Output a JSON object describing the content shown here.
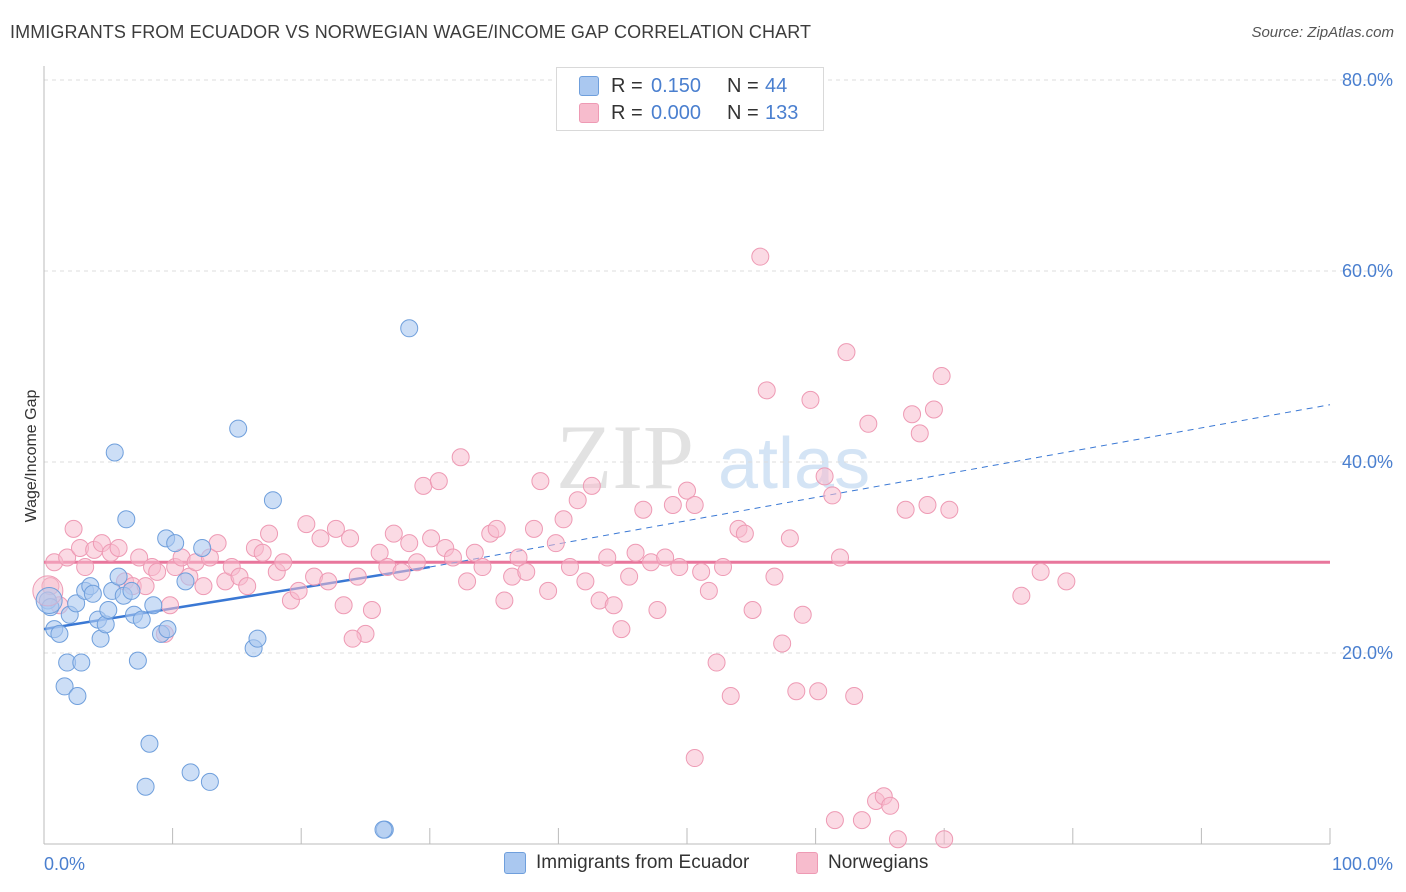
{
  "title": "IMMIGRANTS FROM ECUADOR VS NORWEGIAN WAGE/INCOME GAP CORRELATION CHART",
  "source": "Source: ZipAtlas.com",
  "watermark": {
    "zip": "ZIP",
    "atlas": "atlas"
  },
  "colors": {
    "blue_fill": "#aac8f0",
    "blue_stroke": "#6f9fdc",
    "blue_line": "#3a78d4",
    "pink_fill": "#f7bccd",
    "pink_stroke": "#ee9ab4",
    "pink_line": "#e8769c",
    "accent_text": "#4a7fcf",
    "grid": "#dddddd"
  },
  "legend": {
    "series1": {
      "r_label": "R =",
      "r_value": "0.150",
      "n_label": "N =",
      "n_value": "44"
    },
    "series2": {
      "r_label": "R =",
      "r_value": "0.000",
      "n_label": "N =",
      "n_value": "133"
    }
  },
  "chart_data": {
    "type": "scatter",
    "title": "IMMIGRANTS FROM ECUADOR VS NORWEGIAN WAGE/INCOME GAP CORRELATION CHART",
    "xlabel": "",
    "ylabel": "Wage/Income Gap",
    "xlim": [
      0,
      100
    ],
    "ylim": [
      0,
      80
    ],
    "x_tick_labels": [
      "0.0%",
      "100.0%"
    ],
    "y_ticks": [
      20,
      40,
      60,
      80
    ],
    "y_tick_labels": [
      "20.0%",
      "40.0%",
      "60.0%",
      "80.0%"
    ],
    "grid": true,
    "legend_position": "top-center and bottom",
    "series": [
      {
        "name": "Immigrants from Ecuador",
        "color": "blue",
        "R": 0.15,
        "N": 44,
        "trend": {
          "x0": 0,
          "y0": 22.5,
          "x1": 30,
          "y1": 29.0,
          "dashed_to_x": 100,
          "dashed_to_y": 46
        },
        "points": [
          [
            0.3,
            25.5
          ],
          [
            0.5,
            24.8
          ],
          [
            0.8,
            22.5
          ],
          [
            1.2,
            22.0
          ],
          [
            1.6,
            16.5
          ],
          [
            1.8,
            19.0
          ],
          [
            2.0,
            24.0
          ],
          [
            2.5,
            25.2
          ],
          [
            2.6,
            15.5
          ],
          [
            2.9,
            19.0
          ],
          [
            3.2,
            26.5
          ],
          [
            3.6,
            27.0
          ],
          [
            3.8,
            26.2
          ],
          [
            4.2,
            23.5
          ],
          [
            4.4,
            21.5
          ],
          [
            4.8,
            23.0
          ],
          [
            5.0,
            24.5
          ],
          [
            5.3,
            26.5
          ],
          [
            5.5,
            41.0
          ],
          [
            5.8,
            28.0
          ],
          [
            6.2,
            26.0
          ],
          [
            6.4,
            34.0
          ],
          [
            6.8,
            26.5
          ],
          [
            7.0,
            24.0
          ],
          [
            7.3,
            19.2
          ],
          [
            7.6,
            23.5
          ],
          [
            7.9,
            6.0
          ],
          [
            8.2,
            10.5
          ],
          [
            8.5,
            25.0
          ],
          [
            9.1,
            22.0
          ],
          [
            9.5,
            32.0
          ],
          [
            9.6,
            22.5
          ],
          [
            10.2,
            31.5
          ],
          [
            11.0,
            27.5
          ],
          [
            11.4,
            7.5
          ],
          [
            12.3,
            31.0
          ],
          [
            12.9,
            6.5
          ],
          [
            15.1,
            43.5
          ],
          [
            16.3,
            20.5
          ],
          [
            16.6,
            21.5
          ],
          [
            17.8,
            36.0
          ],
          [
            26.5,
            1.5
          ],
          [
            28.4,
            54.0
          ],
          [
            26.4,
            1.5
          ]
        ]
      },
      {
        "name": "Norwegians",
        "color": "pink",
        "R": 0.0,
        "N": 133,
        "trend": {
          "x0": 0,
          "y0": 29.5,
          "x1": 100,
          "y1": 29.5
        },
        "points": [
          [
            0.5,
            27.0
          ],
          [
            0.8,
            29.5
          ],
          [
            1.2,
            25.0
          ],
          [
            1.8,
            30.0
          ],
          [
            2.3,
            33.0
          ],
          [
            2.8,
            31.0
          ],
          [
            3.2,
            29.0
          ],
          [
            3.9,
            30.8
          ],
          [
            4.5,
            31.5
          ],
          [
            5.2,
            30.5
          ],
          [
            5.8,
            31.0
          ],
          [
            6.3,
            27.5
          ],
          [
            6.9,
            27.0
          ],
          [
            7.4,
            30.0
          ],
          [
            7.9,
            27.0
          ],
          [
            8.4,
            29.0
          ],
          [
            8.8,
            28.5
          ],
          [
            9.4,
            22.0
          ],
          [
            9.8,
            25.0
          ],
          [
            10.2,
            29.0
          ],
          [
            10.7,
            30.0
          ],
          [
            11.3,
            28.0
          ],
          [
            11.8,
            29.5
          ],
          [
            12.4,
            27.0
          ],
          [
            12.9,
            30.0
          ],
          [
            13.5,
            31.5
          ],
          [
            14.1,
            27.5
          ],
          [
            14.6,
            29.0
          ],
          [
            15.2,
            28.0
          ],
          [
            15.8,
            27.0
          ],
          [
            16.4,
            31.0
          ],
          [
            17.0,
            30.5
          ],
          [
            17.5,
            32.5
          ],
          [
            18.1,
            28.5
          ],
          [
            18.6,
            29.5
          ],
          [
            19.2,
            25.5
          ],
          [
            19.8,
            26.5
          ],
          [
            20.4,
            33.5
          ],
          [
            21.0,
            28.0
          ],
          [
            21.5,
            32.0
          ],
          [
            22.1,
            27.5
          ],
          [
            22.7,
            33.0
          ],
          [
            23.3,
            25.0
          ],
          [
            23.8,
            32.0
          ],
          [
            24.4,
            28.0
          ],
          [
            25.0,
            22.0
          ],
          [
            25.5,
            24.5
          ],
          [
            26.1,
            30.5
          ],
          [
            26.7,
            29.0
          ],
          [
            27.2,
            32.5
          ],
          [
            27.8,
            28.5
          ],
          [
            28.4,
            31.5
          ],
          [
            29.0,
            29.5
          ],
          [
            29.5,
            37.5
          ],
          [
            30.1,
            32.0
          ],
          [
            30.7,
            38.0
          ],
          [
            31.2,
            31.0
          ],
          [
            31.8,
            30.0
          ],
          [
            32.4,
            40.5
          ],
          [
            32.9,
            27.5
          ],
          [
            33.5,
            30.5
          ],
          [
            34.1,
            29.0
          ],
          [
            34.7,
            32.5
          ],
          [
            35.2,
            33.0
          ],
          [
            35.8,
            25.5
          ],
          [
            36.4,
            28.0
          ],
          [
            36.9,
            30.0
          ],
          [
            37.5,
            28.5
          ],
          [
            38.1,
            33.0
          ],
          [
            38.6,
            38.0
          ],
          [
            39.2,
            26.5
          ],
          [
            39.8,
            31.5
          ],
          [
            40.4,
            34.0
          ],
          [
            40.9,
            29.0
          ],
          [
            41.5,
            36.0
          ],
          [
            42.1,
            27.5
          ],
          [
            42.6,
            37.5
          ],
          [
            43.2,
            25.5
          ],
          [
            43.8,
            30.0
          ],
          [
            44.3,
            25.0
          ],
          [
            44.9,
            22.5
          ],
          [
            45.5,
            28.0
          ],
          [
            46.0,
            30.5
          ],
          [
            46.6,
            35.0
          ],
          [
            47.2,
            29.5
          ],
          [
            47.7,
            24.5
          ],
          [
            48.3,
            30.0
          ],
          [
            48.9,
            35.5
          ],
          [
            49.4,
            29.0
          ],
          [
            50.0,
            37.0
          ],
          [
            50.6,
            35.5
          ],
          [
            51.1,
            28.5
          ],
          [
            51.7,
            26.5
          ],
          [
            52.3,
            19.0
          ],
          [
            52.8,
            29.0
          ],
          [
            53.4,
            15.5
          ],
          [
            54.0,
            33.0
          ],
          [
            54.5,
            32.5
          ],
          [
            55.1,
            24.5
          ],
          [
            55.7,
            61.5
          ],
          [
            56.2,
            47.5
          ],
          [
            56.8,
            28.0
          ],
          [
            57.4,
            21.0
          ],
          [
            58.0,
            32.0
          ],
          [
            58.5,
            16.0
          ],
          [
            59.0,
            24.0
          ],
          [
            59.6,
            46.5
          ],
          [
            60.2,
            16.0
          ],
          [
            60.7,
            38.5
          ],
          [
            61.3,
            36.5
          ],
          [
            61.9,
            30.0
          ],
          [
            62.4,
            51.5
          ],
          [
            63.0,
            15.5
          ],
          [
            63.6,
            2.5
          ],
          [
            64.1,
            44.0
          ],
          [
            64.7,
            4.5
          ],
          [
            65.3,
            5.0
          ],
          [
            65.8,
            4.0
          ],
          [
            66.4,
            0.5
          ],
          [
            67.0,
            35.0
          ],
          [
            67.5,
            45.0
          ],
          [
            68.1,
            43.0
          ],
          [
            68.7,
            35.5
          ],
          [
            69.2,
            45.5
          ],
          [
            69.8,
            49.0
          ],
          [
            70.4,
            35.0
          ],
          [
            76.0,
            26.0
          ],
          [
            77.5,
            28.5
          ],
          [
            79.5,
            27.5
          ],
          [
            50.6,
            9.0
          ],
          [
            61.5,
            2.5
          ],
          [
            70.0,
            0.5
          ],
          [
            24.0,
            21.5
          ]
        ]
      }
    ]
  },
  "bottom_legend": {
    "series1": "Immigrants from Ecuador",
    "series2": "Norwegians"
  }
}
